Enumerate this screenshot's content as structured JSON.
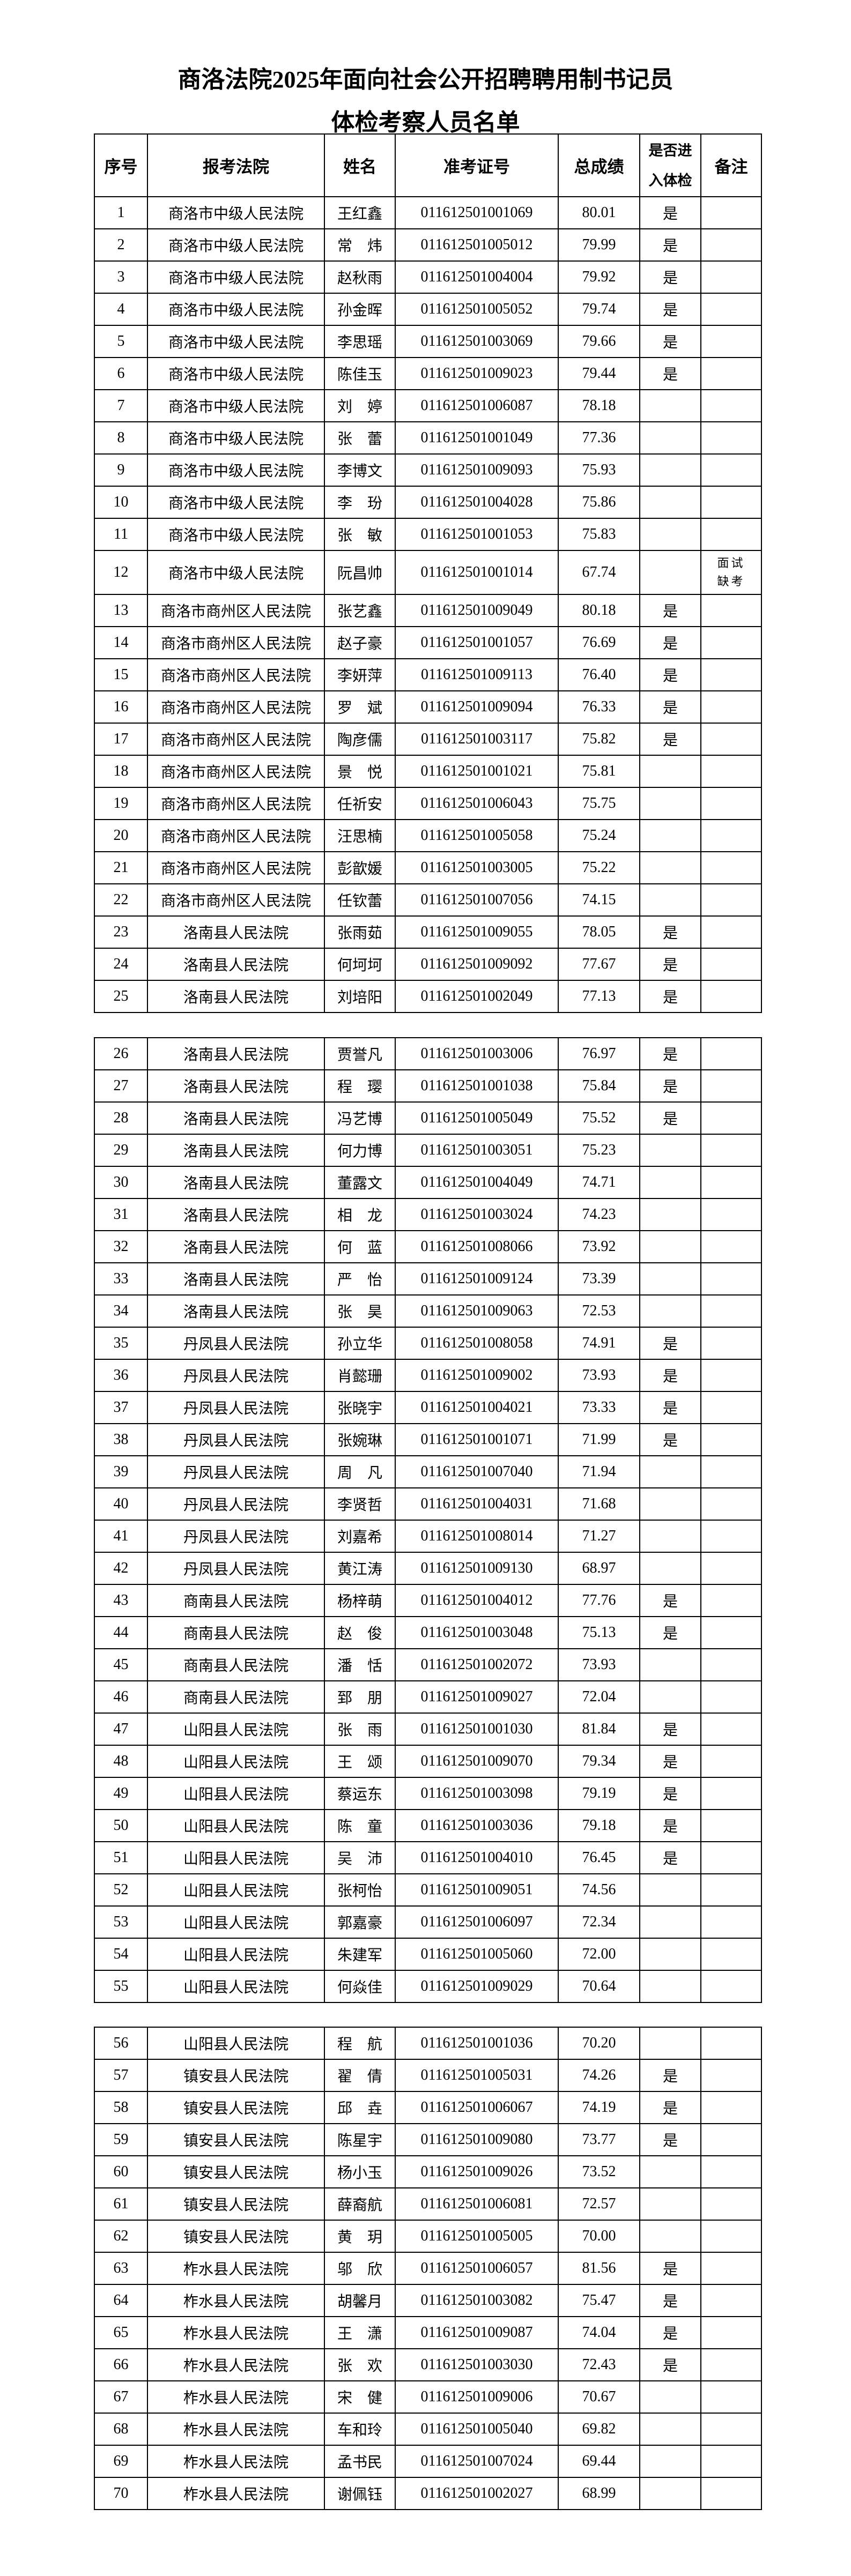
{
  "title": {
    "line1": "商洛法院2025年面向社会公开招聘聘用制书记员",
    "line2": "体检考察人员名单"
  },
  "header": {
    "no": "序号",
    "court": "报考法院",
    "name": "姓名",
    "exam_id": "准考证号",
    "score": "总成绩",
    "pass_line1": "是否进",
    "pass_line2": "入体检",
    "remark": "备注"
  },
  "tables": [
    {
      "rows": [
        [
          "1",
          "商洛市中级人民法院",
          "王红鑫",
          "011612501001069",
          "80.01",
          "是",
          ""
        ],
        [
          "2",
          "商洛市中级人民法院",
          "常　炜",
          "011612501005012",
          "79.99",
          "是",
          ""
        ],
        [
          "3",
          "商洛市中级人民法院",
          "赵秋雨",
          "011612501004004",
          "79.92",
          "是",
          ""
        ],
        [
          "4",
          "商洛市中级人民法院",
          "孙金晖",
          "011612501005052",
          "79.74",
          "是",
          ""
        ],
        [
          "5",
          "商洛市中级人民法院",
          "李思瑶",
          "011612501003069",
          "79.66",
          "是",
          ""
        ],
        [
          "6",
          "商洛市中级人民法院",
          "陈佳玉",
          "011612501009023",
          "79.44",
          "是",
          ""
        ],
        [
          "7",
          "商洛市中级人民法院",
          "刘　婷",
          "011612501006087",
          "78.18",
          "",
          ""
        ],
        [
          "8",
          "商洛市中级人民法院",
          "张　蕾",
          "011612501001049",
          "77.36",
          "",
          ""
        ],
        [
          "9",
          "商洛市中级人民法院",
          "李博文",
          "011612501009093",
          "75.93",
          "",
          ""
        ],
        [
          "10",
          "商洛市中级人民法院",
          "李　玢",
          "011612501004028",
          "75.86",
          "",
          ""
        ],
        [
          "11",
          "商洛市中级人民法院",
          "张　敏",
          "011612501001053",
          "75.83",
          "",
          ""
        ],
        [
          "12",
          "商洛市中级人民法院",
          "阮昌帅",
          "011612501001014",
          "67.74",
          "",
          "面试缺考"
        ],
        [
          "13",
          "商洛市商州区人民法院",
          "张艺鑫",
          "011612501009049",
          "80.18",
          "是",
          ""
        ],
        [
          "14",
          "商洛市商州区人民法院",
          "赵子豪",
          "011612501001057",
          "76.69",
          "是",
          ""
        ],
        [
          "15",
          "商洛市商州区人民法院",
          "李妍萍",
          "011612501009113",
          "76.40",
          "是",
          ""
        ],
        [
          "16",
          "商洛市商州区人民法院",
          "罗　斌",
          "011612501009094",
          "76.33",
          "是",
          ""
        ],
        [
          "17",
          "商洛市商州区人民法院",
          "陶彦儒",
          "011612501003117",
          "75.82",
          "是",
          ""
        ],
        [
          "18",
          "商洛市商州区人民法院",
          "景　悦",
          "011612501001021",
          "75.81",
          "",
          ""
        ],
        [
          "19",
          "商洛市商州区人民法院",
          "任祈安",
          "011612501006043",
          "75.75",
          "",
          ""
        ],
        [
          "20",
          "商洛市商州区人民法院",
          "汪思楠",
          "011612501005058",
          "75.24",
          "",
          ""
        ],
        [
          "21",
          "商洛市商州区人民法院",
          "彭歆媛",
          "011612501003005",
          "75.22",
          "",
          ""
        ],
        [
          "22",
          "商洛市商州区人民法院",
          "任钦蕾",
          "011612501007056",
          "74.15",
          "",
          ""
        ],
        [
          "23",
          "洛南县人民法院",
          "张雨茹",
          "011612501009055",
          "78.05",
          "是",
          ""
        ],
        [
          "24",
          "洛南县人民法院",
          "何坷坷",
          "011612501009092",
          "77.67",
          "是",
          ""
        ],
        [
          "25",
          "洛南县人民法院",
          "刘培阳",
          "011612501002049",
          "77.13",
          "是",
          ""
        ]
      ]
    },
    {
      "rows": [
        [
          "26",
          "洛南县人民法院",
          "贾誉凡",
          "011612501003006",
          "76.97",
          "是",
          ""
        ],
        [
          "27",
          "洛南县人民法院",
          "程　璎",
          "011612501001038",
          "75.84",
          "是",
          ""
        ],
        [
          "28",
          "洛南县人民法院",
          "冯艺博",
          "011612501005049",
          "75.52",
          "是",
          ""
        ],
        [
          "29",
          "洛南县人民法院",
          "何力博",
          "011612501003051",
          "75.23",
          "",
          ""
        ],
        [
          "30",
          "洛南县人民法院",
          "董露文",
          "011612501004049",
          "74.71",
          "",
          ""
        ],
        [
          "31",
          "洛南县人民法院",
          "相　龙",
          "011612501003024",
          "74.23",
          "",
          ""
        ],
        [
          "32",
          "洛南县人民法院",
          "何　蓝",
          "011612501008066",
          "73.92",
          "",
          ""
        ],
        [
          "33",
          "洛南县人民法院",
          "严　怡",
          "011612501009124",
          "73.39",
          "",
          ""
        ],
        [
          "34",
          "洛南县人民法院",
          "张　昊",
          "011612501009063",
          "72.53",
          "",
          ""
        ],
        [
          "35",
          "丹凤县人民法院",
          "孙立华",
          "011612501008058",
          "74.91",
          "是",
          ""
        ],
        [
          "36",
          "丹凤县人民法院",
          "肖懿珊",
          "011612501009002",
          "73.93",
          "是",
          ""
        ],
        [
          "37",
          "丹凤县人民法院",
          "张晓宇",
          "011612501004021",
          "73.33",
          "是",
          ""
        ],
        [
          "38",
          "丹凤县人民法院",
          "张婉琳",
          "011612501001071",
          "71.99",
          "是",
          ""
        ],
        [
          "39",
          "丹凤县人民法院",
          "周　凡",
          "011612501007040",
          "71.94",
          "",
          ""
        ],
        [
          "40",
          "丹凤县人民法院",
          "李贤哲",
          "011612501004031",
          "71.68",
          "",
          ""
        ],
        [
          "41",
          "丹凤县人民法院",
          "刘嘉希",
          "011612501008014",
          "71.27",
          "",
          ""
        ],
        [
          "42",
          "丹凤县人民法院",
          "黄江涛",
          "011612501009130",
          "68.97",
          "",
          ""
        ],
        [
          "43",
          "商南县人民法院",
          "杨梓萌",
          "011612501004012",
          "77.76",
          "是",
          ""
        ],
        [
          "44",
          "商南县人民法院",
          "赵　俊",
          "011612501003048",
          "75.13",
          "是",
          ""
        ],
        [
          "45",
          "商南县人民法院",
          "潘　恬",
          "011612501002072",
          "73.93",
          "",
          ""
        ],
        [
          "46",
          "商南县人民法院",
          "郅　朋",
          "011612501009027",
          "72.04",
          "",
          ""
        ],
        [
          "47",
          "山阳县人民法院",
          "张　雨",
          "011612501001030",
          "81.84",
          "是",
          ""
        ],
        [
          "48",
          "山阳县人民法院",
          "王　颂",
          "011612501009070",
          "79.34",
          "是",
          ""
        ],
        [
          "49",
          "山阳县人民法院",
          "蔡运东",
          "011612501003098",
          "79.19",
          "是",
          ""
        ],
        [
          "50",
          "山阳县人民法院",
          "陈　童",
          "011612501003036",
          "79.18",
          "是",
          ""
        ],
        [
          "51",
          "山阳县人民法院",
          "吴　沛",
          "011612501004010",
          "76.45",
          "是",
          ""
        ],
        [
          "52",
          "山阳县人民法院",
          "张柯怡",
          "011612501009051",
          "74.56",
          "",
          ""
        ],
        [
          "53",
          "山阳县人民法院",
          "郭嘉豪",
          "011612501006097",
          "72.34",
          "",
          ""
        ],
        [
          "54",
          "山阳县人民法院",
          "朱建军",
          "011612501005060",
          "72.00",
          "",
          ""
        ],
        [
          "55",
          "山阳县人民法院",
          "何焱佳",
          "011612501009029",
          "70.64",
          "",
          ""
        ]
      ]
    },
    {
      "rows": [
        [
          "56",
          "山阳县人民法院",
          "程　航",
          "011612501001036",
          "70.20",
          "",
          ""
        ],
        [
          "57",
          "镇安县人民法院",
          "翟　倩",
          "011612501005031",
          "74.26",
          "是",
          ""
        ],
        [
          "58",
          "镇安县人民法院",
          "邱　垚",
          "011612501006067",
          "74.19",
          "是",
          ""
        ],
        [
          "59",
          "镇安县人民法院",
          "陈星宇",
          "011612501009080",
          "73.77",
          "是",
          ""
        ],
        [
          "60",
          "镇安县人民法院",
          "杨小玉",
          "011612501009026",
          "73.52",
          "",
          ""
        ],
        [
          "61",
          "镇安县人民法院",
          "薛裔航",
          "011612501006081",
          "72.57",
          "",
          ""
        ],
        [
          "62",
          "镇安县人民法院",
          "黄　玥",
          "011612501005005",
          "70.00",
          "",
          ""
        ],
        [
          "63",
          "柞水县人民法院",
          "邬　欣",
          "011612501006057",
          "81.56",
          "是",
          ""
        ],
        [
          "64",
          "柞水县人民法院",
          "胡馨月",
          "011612501003082",
          "75.47",
          "是",
          ""
        ],
        [
          "65",
          "柞水县人民法院",
          "王　潇",
          "011612501009087",
          "74.04",
          "是",
          ""
        ],
        [
          "66",
          "柞水县人民法院",
          "张　欢",
          "011612501003030",
          "72.43",
          "是",
          ""
        ],
        [
          "67",
          "柞水县人民法院",
          "宋　健",
          "011612501009006",
          "70.67",
          "",
          ""
        ],
        [
          "68",
          "柞水县人民法院",
          "车和玲",
          "011612501005040",
          "69.82",
          "",
          ""
        ],
        [
          "69",
          "柞水县人民法院",
          "孟书民",
          "011612501007024",
          "69.44",
          "",
          ""
        ],
        [
          "70",
          "柞水县人民法院",
          "谢佩钰",
          "011612501002027",
          "68.99",
          "",
          ""
        ]
      ]
    }
  ]
}
